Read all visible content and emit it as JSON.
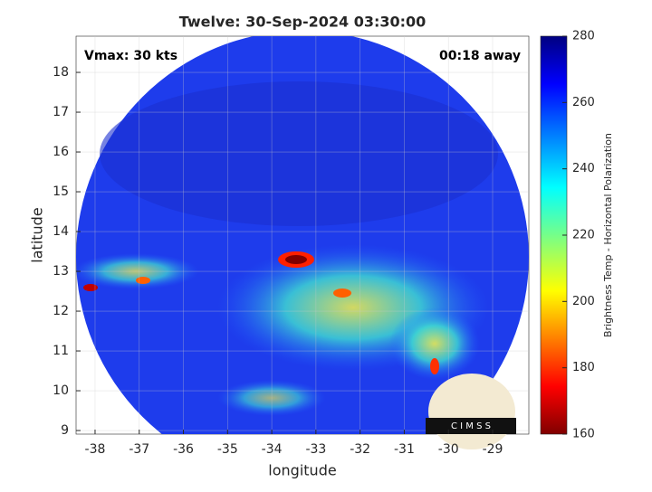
{
  "chart_data": {
    "type": "image",
    "title": "Twelve: 30-Sep-2024 03:30:00",
    "annotations": [
      "Vmax: 30 kts",
      "00:18 away"
    ],
    "x_label": "longitude",
    "y_label": "latitude",
    "xlim": [
      -38.43,
      -28.18
    ],
    "xticks": [
      -38,
      -37,
      -36,
      -35,
      -34,
      -33,
      -32,
      -31,
      -30,
      -29
    ],
    "ylim": [
      8.91,
      18.91
    ],
    "yticks": [
      9,
      10,
      11,
      12,
      13,
      14,
      15,
      16,
      17,
      18
    ],
    "grid": true,
    "colorbar": {
      "label": "Brightness Temp - Horizontal Polarization",
      "lim": [
        160,
        280
      ],
      "ticks": [
        160,
        180,
        200,
        220,
        240,
        260,
        280
      ],
      "colormap": "jet"
    },
    "logo": "C I M S S"
  }
}
